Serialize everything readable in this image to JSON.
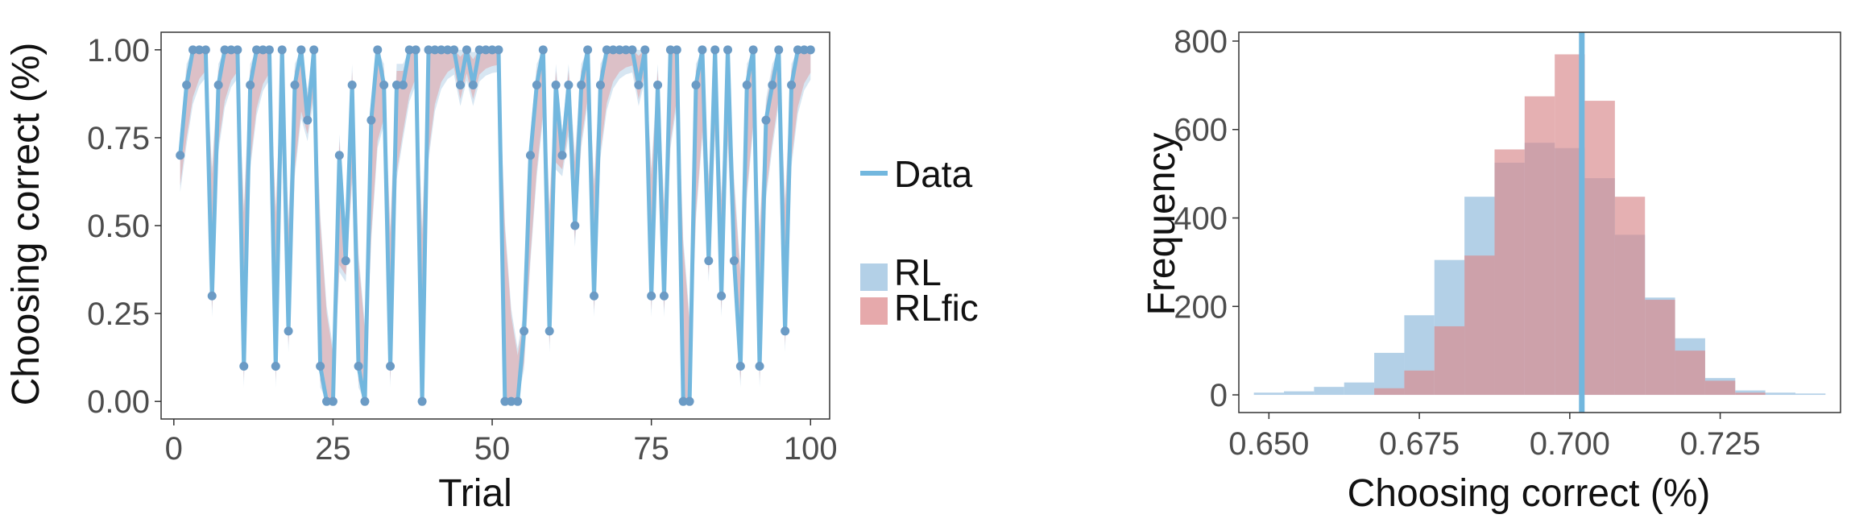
{
  "chart_data": [
    {
      "type": "line",
      "xlabel": "Trial",
      "ylabel": "Choosing correct (%)",
      "xlim": [
        -2,
        103
      ],
      "ylim": [
        -0.05,
        1.05
      ],
      "xticks": [
        0,
        25,
        50,
        75,
        100
      ],
      "xtick_labels": [
        "0",
        "25",
        "50",
        "75",
        "100"
      ],
      "yticks": [
        0,
        0.25,
        0.5,
        0.75,
        1
      ],
      "ytick_labels": [
        "0.00",
        "0.25",
        "0.50",
        "0.75",
        "1.00"
      ],
      "grid": false,
      "legend": {
        "position": "right",
        "line_entry": "Data",
        "band_entries": [
          "RL",
          "RLfic"
        ]
      },
      "colors": {
        "data": "#72b7de",
        "point": "#6b9bc5",
        "rl": "#a6c8e3",
        "rlfic": "#e29a9c"
      },
      "series": [
        {
          "name": "Data",
          "x": [
            1,
            2,
            3,
            4,
            5,
            6,
            7,
            8,
            9,
            10,
            11,
            12,
            13,
            14,
            15,
            16,
            17,
            18,
            19,
            20,
            21,
            22,
            23,
            24,
            25,
            26,
            27,
            28,
            29,
            30,
            31,
            32,
            33,
            34,
            35,
            36,
            37,
            38,
            39,
            40,
            41,
            42,
            43,
            44,
            45,
            46,
            47,
            48,
            49,
            50,
            51,
            52,
            53,
            54,
            55,
            56,
            57,
            58,
            59,
            60,
            61,
            62,
            63,
            64,
            65,
            66,
            67,
            68,
            69,
            70,
            71,
            72,
            73,
            74,
            75,
            76,
            77,
            78,
            79,
            80,
            81,
            82,
            83,
            84,
            85,
            86,
            87,
            88,
            89,
            90,
            91,
            92,
            93,
            94,
            95,
            96,
            97,
            98,
            99,
            100
          ],
          "values": [
            0.7,
            0.9,
            1,
            1,
            1,
            0.3,
            0.9,
            1,
            1,
            1,
            0.1,
            0.9,
            1,
            1,
            1,
            0.1,
            1,
            0.2,
            0.9,
            1,
            0.8,
            1,
            0.1,
            0,
            0,
            0.7,
            0.4,
            0.9,
            0.1,
            0,
            0.8,
            1,
            0.9,
            0.1,
            0.9,
            0.9,
            1,
            1,
            0,
            1,
            1,
            1,
            1,
            1,
            0.9,
            1,
            0.9,
            1,
            1,
            1,
            1,
            0,
            0,
            0,
            0.2,
            0.7,
            0.9,
            1,
            0.2,
            0.9,
            0.7,
            0.9,
            0.5,
            0.9,
            1,
            0.3,
            0.9,
            1,
            1,
            1,
            1,
            1,
            0.9,
            1,
            0.3,
            0.9,
            0.3,
            1,
            1,
            0,
            0,
            0.9,
            1,
            0.4,
            1,
            0.3,
            1,
            0.4,
            0.1,
            0.9,
            1,
            0.1,
            0.8,
            0.9,
            1,
            0.2,
            0.9,
            1,
            1,
            1
          ]
        }
      ]
    },
    {
      "type": "histogram",
      "xlabel": "Choosing correct (%)",
      "ylabel": "Frequency",
      "xlim": [
        0.645,
        0.745
      ],
      "ylim": [
        -40,
        820
      ],
      "xticks": [
        0.65,
        0.675,
        0.7,
        0.725
      ],
      "xtick_labels": [
        "0.650",
        "0.675",
        "0.700",
        "0.725"
      ],
      "yticks": [
        0,
        200,
        400,
        600,
        800
      ],
      "ytick_labels": [
        "0",
        "200",
        "400",
        "600",
        "800"
      ],
      "bin_width": 0.005,
      "bin_starts": [
        0.6475,
        0.6525,
        0.6575,
        0.6625,
        0.6675,
        0.6725,
        0.6775,
        0.6825,
        0.6875,
        0.6925,
        0.6975,
        0.7025,
        0.7075,
        0.7125,
        0.7175,
        0.7225,
        0.7275,
        0.7325,
        0.7375
      ],
      "vline": 0.702,
      "grid": false,
      "series": [
        {
          "name": "RL",
          "values": [
            5,
            8,
            18,
            28,
            95,
            180,
            305,
            448,
            525,
            570,
            558,
            490,
            362,
            220,
            128,
            38,
            10,
            5,
            3
          ]
        },
        {
          "name": "RLfic",
          "values": [
            0,
            0,
            0,
            0,
            15,
            55,
            155,
            315,
            555,
            675,
            770,
            665,
            448,
            215,
            100,
            32,
            5,
            0,
            0
          ]
        }
      ]
    }
  ]
}
